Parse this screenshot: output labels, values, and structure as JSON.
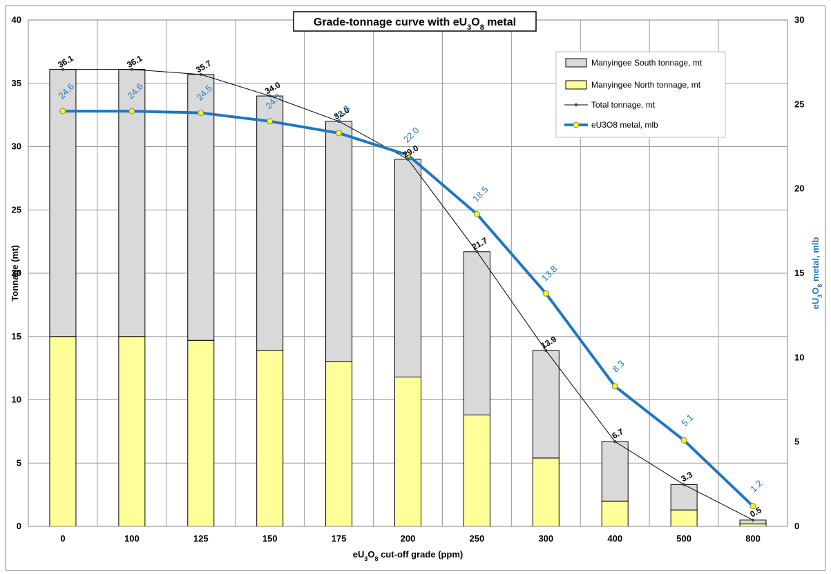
{
  "chart_data": {
    "type": "bar",
    "title_parts": [
      "Grade-tonnage curve with eU",
      "3",
      "O",
      "8",
      " metal"
    ],
    "xlabel_parts": [
      "eU",
      "3",
      "O",
      "8",
      " cut-off grade (ppm)"
    ],
    "ylabel": "Tonnage (mt)",
    "y2label_parts": [
      "eU",
      "3",
      "O",
      "8",
      " metal, mlb"
    ],
    "categories": [
      "0",
      "100",
      "125",
      "150",
      "175",
      "200",
      "250",
      "300",
      "400",
      "500",
      "800"
    ],
    "ylim": [
      0,
      40
    ],
    "y_ticks": [
      0,
      5,
      10,
      15,
      20,
      25,
      30,
      35,
      40
    ],
    "y2lim": [
      0,
      30
    ],
    "y2_ticks": [
      0,
      5,
      10,
      15,
      20,
      25,
      30
    ],
    "grid": true,
    "legend_position": "top-right",
    "series": [
      {
        "name": "Manyingee South tonnage, mt",
        "kind": "stacked-bar",
        "axis": "left",
        "color": "#d9d9d9",
        "values": [
          21.1,
          21.1,
          21.0,
          20.1,
          19.0,
          17.2,
          12.9,
          8.5,
          4.7,
          2.0,
          0.3
        ]
      },
      {
        "name": "Manyingee North tonnage, mt",
        "kind": "stacked-bar",
        "axis": "left",
        "color": "#ffff99",
        "values": [
          15.0,
          15.0,
          14.7,
          13.9,
          13.0,
          11.8,
          8.8,
          5.4,
          2.0,
          1.3,
          0.2
        ]
      },
      {
        "name": "Total tonnage, mt",
        "kind": "line",
        "axis": "left",
        "color": "#000000",
        "values": [
          36.1,
          36.1,
          35.7,
          34.0,
          32.0,
          29.0,
          21.7,
          13.9,
          6.7,
          3.3,
          0.5
        ],
        "labels": [
          "36.1",
          "36.1",
          "35.7",
          "34.0",
          "32.0",
          "29.0",
          "21.7",
          "13.9",
          "6.7",
          "3.3",
          "0.5"
        ]
      },
      {
        "name": "eU3O8 metal, mlb",
        "kind": "line",
        "axis": "right",
        "color": "#1f77c0",
        "values": [
          24.6,
          24.6,
          24.5,
          24.0,
          23.3,
          22.0,
          18.5,
          13.8,
          8.3,
          5.1,
          1.2
        ],
        "labels": [
          "24.6",
          "24.6",
          "24.5",
          "24.0",
          "23.3",
          "22.0",
          "18.5",
          "13.8",
          "8.3",
          "5.1",
          "1.2"
        ]
      }
    ]
  }
}
